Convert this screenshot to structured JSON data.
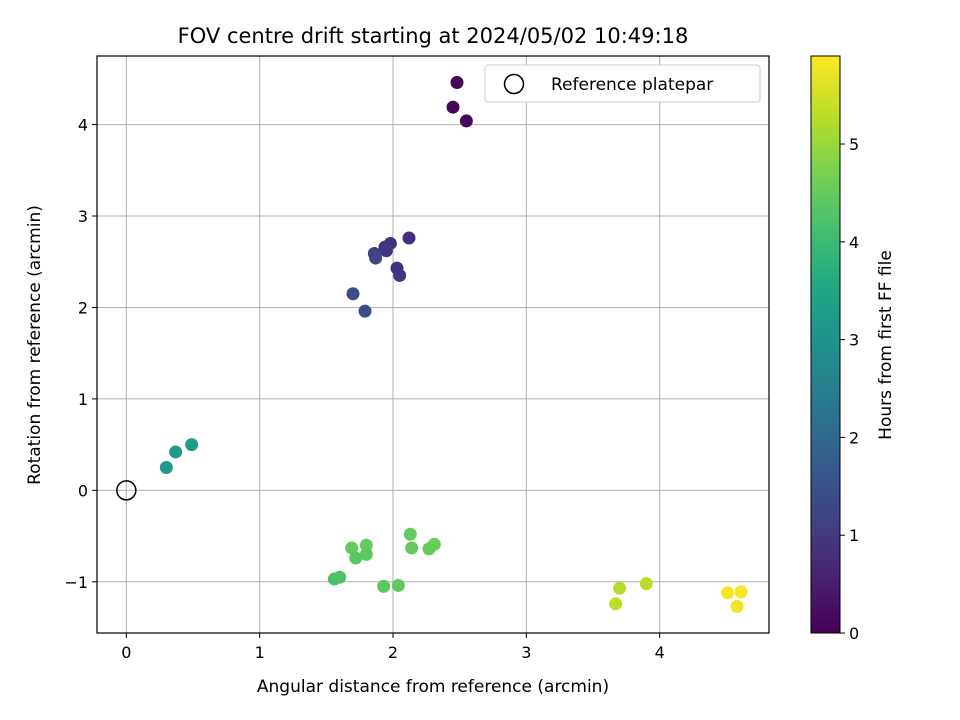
{
  "chart_data": {
    "type": "scatter",
    "title": "FOV centre drift starting at 2024/05/02 10:49:18",
    "xlabel": "Angular distance from reference (arcmin)",
    "ylabel": "Rotation from reference (arcmin)",
    "xlim": [
      -0.22,
      4.82
    ],
    "ylim": [
      -1.56,
      4.75
    ],
    "xticks": [
      0,
      1,
      2,
      3,
      4
    ],
    "yticks": [
      -1,
      0,
      1,
      2,
      3,
      4
    ],
    "grid": true,
    "legend": {
      "placement": "top-right",
      "entries": [
        "Reference platepar"
      ]
    },
    "reference_point": {
      "x": 0,
      "y": 0,
      "label": "Reference platepar"
    },
    "colorbar": {
      "label": "Hours from first FF file",
      "colormap": "viridis",
      "range": [
        0,
        5.9
      ],
      "ticks": [
        0,
        1,
        2,
        3,
        4,
        5
      ]
    },
    "points": [
      {
        "x": 2.48,
        "y": 4.46,
        "c": 0.05
      },
      {
        "x": 2.45,
        "y": 4.19,
        "c": 0.1
      },
      {
        "x": 2.55,
        "y": 4.04,
        "c": 0.15
      },
      {
        "x": 2.12,
        "y": 2.76,
        "c": 0.8
      },
      {
        "x": 1.98,
        "y": 2.7,
        "c": 0.85
      },
      {
        "x": 1.94,
        "y": 2.66,
        "c": 0.9
      },
      {
        "x": 1.95,
        "y": 2.62,
        "c": 0.95
      },
      {
        "x": 2.03,
        "y": 2.43,
        "c": 0.85
      },
      {
        "x": 2.05,
        "y": 2.35,
        "c": 0.9
      },
      {
        "x": 1.86,
        "y": 2.59,
        "c": 1.2
      },
      {
        "x": 1.87,
        "y": 2.54,
        "c": 1.25
      },
      {
        "x": 1.7,
        "y": 2.15,
        "c": 1.35
      },
      {
        "x": 1.79,
        "y": 1.96,
        "c": 1.4
      },
      {
        "x": 0.3,
        "y": 0.25,
        "c": 3.15
      },
      {
        "x": 0.37,
        "y": 0.42,
        "c": 3.2
      },
      {
        "x": 0.49,
        "y": 0.5,
        "c": 3.25
      },
      {
        "x": 2.13,
        "y": -0.48,
        "c": 4.5
      },
      {
        "x": 2.31,
        "y": -0.59,
        "c": 4.55
      },
      {
        "x": 2.27,
        "y": -0.64,
        "c": 4.5
      },
      {
        "x": 2.14,
        "y": -0.63,
        "c": 4.5
      },
      {
        "x": 1.69,
        "y": -0.63,
        "c": 4.5
      },
      {
        "x": 1.8,
        "y": -0.6,
        "c": 4.5
      },
      {
        "x": 1.8,
        "y": -0.7,
        "c": 4.45
      },
      {
        "x": 1.72,
        "y": -0.74,
        "c": 4.4
      },
      {
        "x": 1.56,
        "y": -0.97,
        "c": 4.2
      },
      {
        "x": 1.6,
        "y": -0.95,
        "c": 4.25
      },
      {
        "x": 1.93,
        "y": -1.05,
        "c": 4.4
      },
      {
        "x": 2.04,
        "y": -1.04,
        "c": 4.45
      },
      {
        "x": 3.7,
        "y": -1.07,
        "c": 5.2
      },
      {
        "x": 3.9,
        "y": -1.02,
        "c": 5.25
      },
      {
        "x": 3.67,
        "y": -1.24,
        "c": 5.3
      },
      {
        "x": 4.51,
        "y": -1.12,
        "c": 5.85
      },
      {
        "x": 4.61,
        "y": -1.11,
        "c": 5.85
      },
      {
        "x": 4.58,
        "y": -1.27,
        "c": 5.8
      }
    ]
  }
}
